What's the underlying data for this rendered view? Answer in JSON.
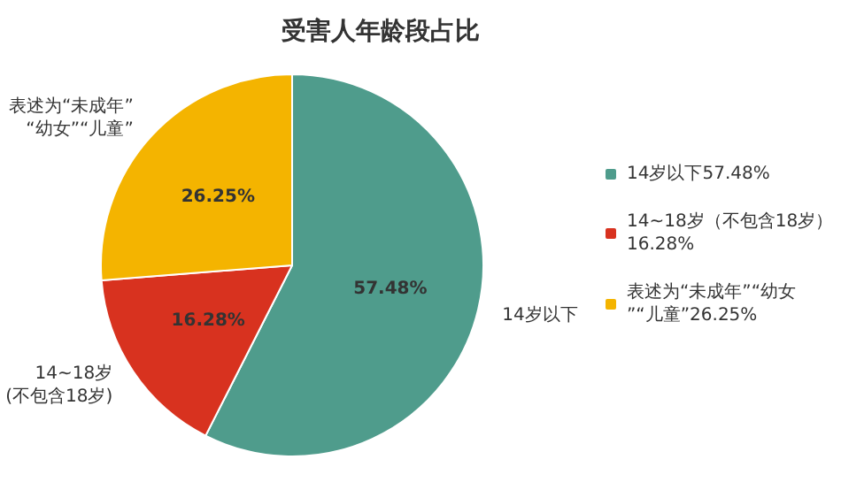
{
  "chart_data": {
    "type": "pie",
    "title": "受害人年龄段占比",
    "categories": [
      "14岁以下57.48%",
      "14~18岁（不包含18岁）16.28%",
      "表述为“未成年”“幼女”“儿童”26.25%"
    ],
    "values": [
      57.48,
      16.28,
      26.25
    ],
    "value_labels": [
      "57.48%",
      "16.28%",
      "26.25%"
    ],
    "colors": [
      "#4f9c8c",
      "#d8321f",
      "#f4b400"
    ],
    "annotations": [
      "14岁以下",
      "14~18岁\n(不包含18岁)",
      "表述为“未成年”\n“幼女”“儿童”"
    ],
    "legend": "right"
  }
}
